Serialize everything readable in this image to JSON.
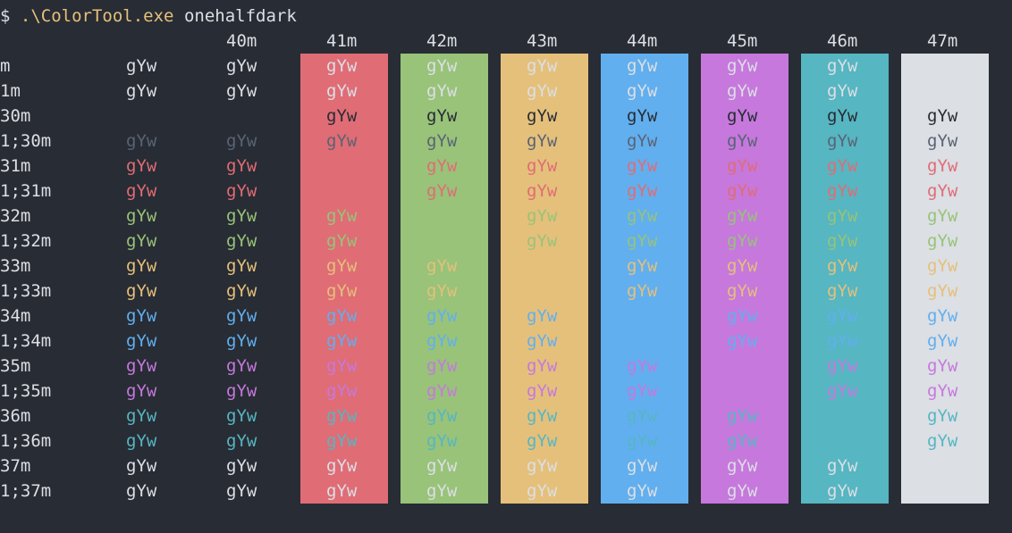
{
  "terminal": {
    "prompt_symbol": "$",
    "command": ".\\ColorTool.exe",
    "argument": "onehalfdark"
  },
  "sample_text": "gYw",
  "default_fg": "#dcdfe4",
  "page_bg": "#282c34",
  "column_headers": [
    "40m",
    "41m",
    "42m",
    "43m",
    "44m",
    "45m",
    "46m",
    "47m"
  ],
  "background_columns": [
    {
      "code": "41m",
      "color": "#e06c75"
    },
    {
      "code": "42m",
      "color": "#98c379"
    },
    {
      "code": "43m",
      "color": "#e5c07b"
    },
    {
      "code": "44m",
      "color": "#61afef"
    },
    {
      "code": "45m",
      "color": "#c678dd"
    },
    {
      "code": "46m",
      "color": "#56b6c2"
    },
    {
      "code": "47m",
      "color": "#dcdfe4"
    }
  ],
  "rows": [
    {
      "label": "m",
      "fg": "#dcdfe4"
    },
    {
      "label": "1m",
      "fg": "#dcdfe4"
    },
    {
      "label": "30m",
      "fg": "#282c34"
    },
    {
      "label": "1;30m",
      "fg": "#5a6374"
    },
    {
      "label": "31m",
      "fg": "#e06c75"
    },
    {
      "label": "1;31m",
      "fg": "#e06c75"
    },
    {
      "label": "32m",
      "fg": "#98c379"
    },
    {
      "label": "1;32m",
      "fg": "#98c379"
    },
    {
      "label": "33m",
      "fg": "#e5c07b"
    },
    {
      "label": "1;33m",
      "fg": "#e5c07b"
    },
    {
      "label": "34m",
      "fg": "#61afef"
    },
    {
      "label": "1;34m",
      "fg": "#61afef"
    },
    {
      "label": "35m",
      "fg": "#c678dd"
    },
    {
      "label": "1;35m",
      "fg": "#c678dd"
    },
    {
      "label": "36m",
      "fg": "#56b6c2"
    },
    {
      "label": "1;36m",
      "fg": "#56b6c2"
    },
    {
      "label": "37m",
      "fg": "#dcdfe4"
    },
    {
      "label": "1;37m",
      "fg": "#dcdfe4"
    }
  ]
}
